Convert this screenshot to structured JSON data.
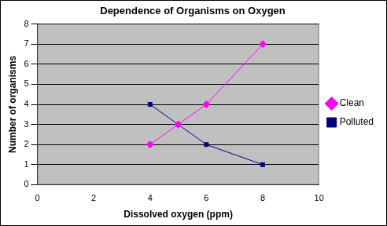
{
  "chart_data": {
    "type": "line",
    "title": "Dependence of Organisms on Oxygen",
    "xlabel": "Dissolved oxygen (ppm)",
    "ylabel": "Number of organisms",
    "x": [
      4,
      5,
      6,
      8
    ],
    "series": [
      {
        "name": "Clean",
        "color": "#ff00ff",
        "marker": "diamond",
        "values": [
          2,
          3,
          4,
          7
        ]
      },
      {
        "name": "Polluted",
        "color": "#000080",
        "marker": "square",
        "values": [
          4,
          3,
          2,
          1
        ]
      }
    ],
    "xlim": [
      0,
      10
    ],
    "xticks": [
      0,
      2,
      4,
      6,
      8,
      10
    ],
    "ylim": [
      0,
      8
    ],
    "yticks": [
      0,
      1,
      2,
      3,
      4,
      5,
      6,
      7,
      8
    ],
    "grid": true,
    "legend": "right"
  }
}
